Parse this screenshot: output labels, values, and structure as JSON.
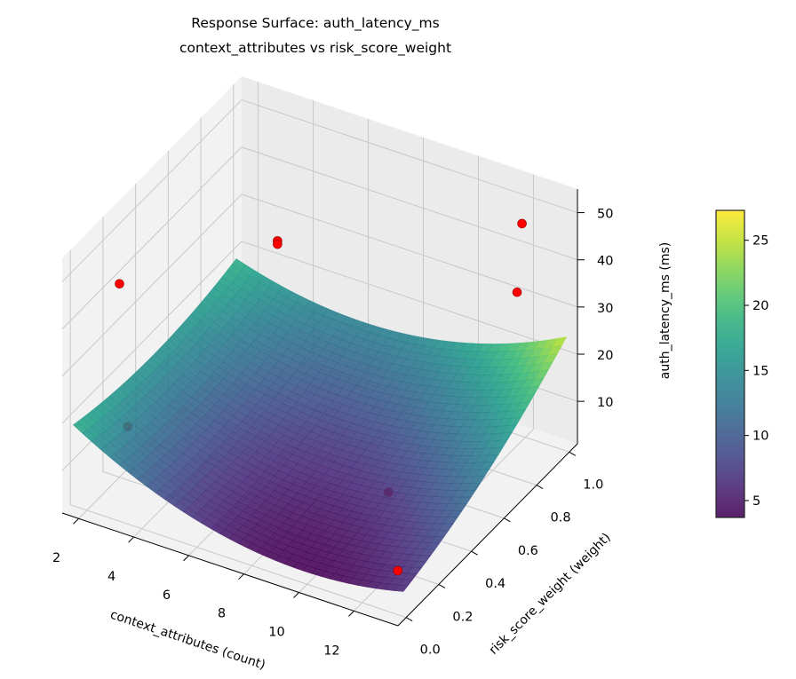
{
  "chart_data": {
    "type": "surface3d",
    "title": "Response Surface: auth_latency_ms",
    "subtitle": "context_attributes vs risk_score_weight",
    "xlabel": "context_attributes (count)",
    "ylabel": "risk_score_weight (weight)",
    "zlabel": "auth_latency_ms (ms)",
    "colorbar_label": "auth_latency_ms (ms)",
    "colormap": "viridis",
    "xlim": [
      1.4,
      13.6
    ],
    "ylim": [
      -0.05,
      1.05
    ],
    "zlim": [
      1,
      55
    ],
    "clim": [
      3.7,
      27.3
    ],
    "xticks": [
      "2",
      "4",
      "6",
      "8",
      "10",
      "12"
    ],
    "yticks": [
      "0.0",
      "0.2",
      "0.4",
      "0.6",
      "0.8",
      "1.0"
    ],
    "zticks": [
      "10",
      "20",
      "30",
      "40",
      "50"
    ],
    "colorbar_ticks": [
      "5",
      "10",
      "15",
      "20",
      "25"
    ],
    "grid": true,
    "surface_model": {
      "form": "z = k + A*dx + B*dy + C*dx^2 + D*dy^2 + E*dx*dy, dx = x - 7.5, dy = y - 0.5",
      "k": 7,
      "A": -0.205,
      "B": 9.55,
      "C": 0.208,
      "D": 10,
      "E": 1.5625
    },
    "scatter_points": [
      {
        "x": 2,
        "y": 0.2,
        "z": 42
      },
      {
        "x": 3,
        "y": 1.0,
        "z": 25
      },
      {
        "x": 3,
        "y": 1.0,
        "z": 24.3
      },
      {
        "x": 12,
        "y": 0.98,
        "z": 47
      },
      {
        "x": 12,
        "y": 0.95,
        "z": 33.5
      },
      {
        "x": 2,
        "y": 0.25,
        "z": 10
      },
      {
        "x": 10,
        "y": 0.5,
        "z": 3
      },
      {
        "x": 13,
        "y": 0.05,
        "z": 8
      }
    ],
    "scatter_color": "#ff0000"
  }
}
